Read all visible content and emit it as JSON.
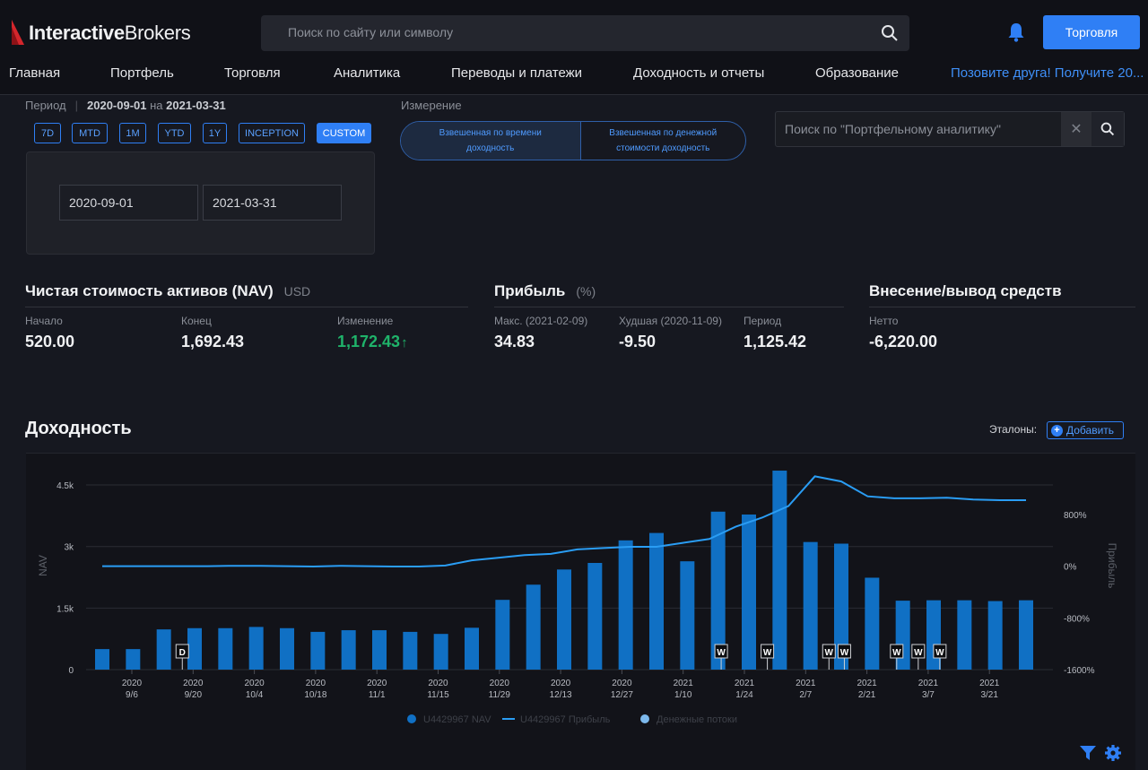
{
  "header": {
    "logo": {
      "bold": "Interactive",
      "light": "Brokers"
    },
    "search_placeholder": "Поиск по сайту или символу",
    "trade_button": "Торговля"
  },
  "nav": {
    "items": [
      "Главная",
      "Портфель",
      "Торговля",
      "Аналитика",
      "Переводы и платежи",
      "Доходность и отчеты",
      "Образование"
    ],
    "promo": "Позовите друга! Получите 20..."
  },
  "period": {
    "label": "Период",
    "from": "2020-09-01",
    "joiner": "на",
    "to": "2021-03-31",
    "chips": [
      "7D",
      "MTD",
      "1M",
      "YTD",
      "1Y",
      "INCEPTION",
      "CUSTOM"
    ],
    "active_chip": "CUSTOM",
    "start_input": "2020-09-01",
    "end_input": "2021-03-31"
  },
  "measure": {
    "label": "Измерение",
    "option_time": "Взвешенная по времени доходность",
    "option_money": "Взвешенная по денежной стоимости доходность"
  },
  "pa_search": {
    "placeholder": "Поиск по \"Портфельному аналитику\"",
    "clear": "✕"
  },
  "nav_block": {
    "title": "Чистая стоимость активов (NAV)",
    "currency": "USD",
    "start_label": "Начало",
    "start_value": "520.00",
    "end_label": "Конец",
    "end_value": "1,692.43",
    "change_label": "Изменение",
    "change_value": "1,172.43"
  },
  "profit_block": {
    "title": "Прибыль",
    "unit": "(%)",
    "max_label": "Макс. (2021-02-09)",
    "max_value": "34.83",
    "worst_label": "Худшая (2020-11-09)",
    "worst_value": "-9.50",
    "period_label": "Период",
    "period_value": "1,125.42"
  },
  "flows_block": {
    "title": "Внесение/вывод средств",
    "net_label": "Нетто",
    "net_value": "-6,220.00"
  },
  "returns": {
    "title": "Доходность",
    "benchmarks_label": "Эталоны:",
    "add_button": "Добавить"
  },
  "chart_data": {
    "type": "bar",
    "y_left_label": "NAV",
    "y_right_label": "Прибыль",
    "y_left_ticks": [
      "0",
      "1.5k",
      "3k",
      "4.5k"
    ],
    "y_left_range": [
      0,
      5200
    ],
    "y_right_ticks": [
      "-1600%",
      "-800%",
      "0%",
      "800%"
    ],
    "y_right_range": [
      -1600,
      1700
    ],
    "x_tick_labels": [
      [
        "2020",
        "9/6"
      ],
      [
        "2020",
        "9/20"
      ],
      [
        "2020",
        "10/4"
      ],
      [
        "2020",
        "10/18"
      ],
      [
        "2020",
        "11/1"
      ],
      [
        "2020",
        "11/15"
      ],
      [
        "2020",
        "11/29"
      ],
      [
        "2020",
        "12/13"
      ],
      [
        "2020",
        "12/27"
      ],
      [
        "2021",
        "1/10"
      ],
      [
        "2021",
        "1/24"
      ],
      [
        "2021",
        "2/7"
      ],
      [
        "2021",
        "2/21"
      ],
      [
        "2021",
        "3/7"
      ],
      [
        "2021",
        "3/21"
      ]
    ],
    "series": [
      {
        "name": "U4429967 NAV",
        "color": "#1070c4",
        "values": [
          500,
          500,
          980,
          1010,
          1010,
          1040,
          1010,
          920,
          960,
          960,
          920,
          870,
          1020,
          1700,
          2070,
          2440,
          2600,
          3150,
          3330,
          2640,
          3850,
          3780,
          4850,
          3110,
          3070,
          2240,
          1680,
          1690,
          1690,
          1670,
          1690
        ]
      },
      {
        "name": "U4429967 Прибыль",
        "color": "#2a9df4",
        "values": [
          0,
          0,
          0,
          0,
          0,
          5,
          5,
          0,
          -5,
          5,
          0,
          -5,
          -5,
          10,
          90,
          130,
          170,
          190,
          260,
          280,
          300,
          300,
          360,
          420,
          610,
          750,
          930,
          1390,
          1310,
          1080,
          1050,
          1050,
          1060,
          1030,
          1020,
          1020
        ]
      },
      {
        "name": "Денежные потоки",
        "color": "#7db9ec",
        "markers": [
          "D",
          "W",
          "W",
          "W",
          "W",
          "W",
          "W",
          "W"
        ]
      }
    ]
  }
}
